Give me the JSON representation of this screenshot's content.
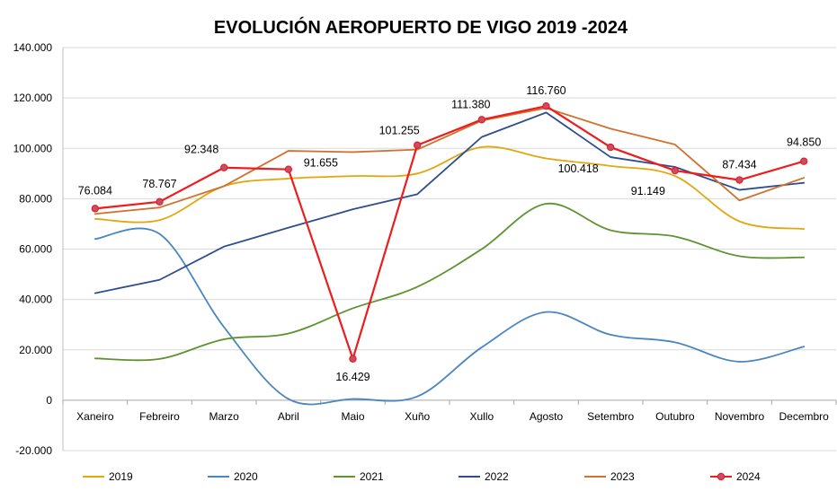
{
  "chart_data": {
    "type": "line",
    "title": "EVOLUCIÓN AEROPUERTO DE VIGO 2019 -2024",
    "xlabel": "",
    "ylabel": "",
    "ylim": [
      -20000,
      140000
    ],
    "yticks": [
      -20000,
      0,
      20000,
      40000,
      60000,
      80000,
      100000,
      120000,
      140000
    ],
    "ytick_labels": [
      "-20.000",
      "0",
      "20.000",
      "40.000",
      "60.000",
      "80.000",
      "100.000",
      "120.000",
      "140.000"
    ],
    "grid": true,
    "legend_position": "bottom",
    "categories": [
      "Xaneiro",
      "Febreiro",
      "Marzo",
      "Abril",
      "Maio",
      "Xuño",
      "Xullo",
      "Agosto",
      "Setembro",
      "Outubro",
      "Novembro",
      "Decembro"
    ],
    "series": [
      {
        "name": "2019",
        "color": "#e2a70c",
        "smooth": true,
        "markers": false,
        "values": [
          72000,
          71500,
          85000,
          88000,
          89000,
          90000,
          100500,
          96000,
          93000,
          89000,
          71000,
          68000
        ]
      },
      {
        "name": "2020",
        "color": "#4a86c0",
        "smooth": true,
        "markers": false,
        "values": [
          64000,
          66000,
          29000,
          500,
          500,
          1500,
          21000,
          35000,
          26000,
          23000,
          15300,
          21300
        ]
      },
      {
        "name": "2021",
        "color": "#5e9330",
        "smooth": true,
        "markers": false,
        "values": [
          16600,
          16400,
          24200,
          26500,
          36500,
          45000,
          60000,
          78000,
          67500,
          65000,
          57200,
          56700
        ]
      },
      {
        "name": "2022",
        "color": "#2d4e8c",
        "smooth": false,
        "markers": false,
        "values": [
          42500,
          47800,
          61000,
          68500,
          75800,
          81800,
          104500,
          114200,
          96500,
          92600,
          83500,
          86300
        ]
      },
      {
        "name": "2023",
        "color": "#d2712e",
        "smooth": false,
        "markers": false,
        "values": [
          74000,
          76500,
          85000,
          99000,
          98500,
          99500,
          111000,
          116000,
          107800,
          101500,
          79300,
          88300
        ]
      },
      {
        "name": "2024",
        "color": "#ee1c1c",
        "smooth": false,
        "markers": true,
        "marker_fill": "#c0506e",
        "values": [
          76084,
          78767,
          92348,
          91655,
          16429,
          101255,
          111380,
          116760,
          100418,
          91149,
          87434,
          94850
        ],
        "data_labels": [
          "76.084",
          "78.767",
          "92.348",
          "91.655",
          "16.429",
          "101.255",
          "111.380",
          "116.760",
          "100.418",
          "91.149",
          "87.434",
          "94.850"
        ]
      }
    ]
  }
}
